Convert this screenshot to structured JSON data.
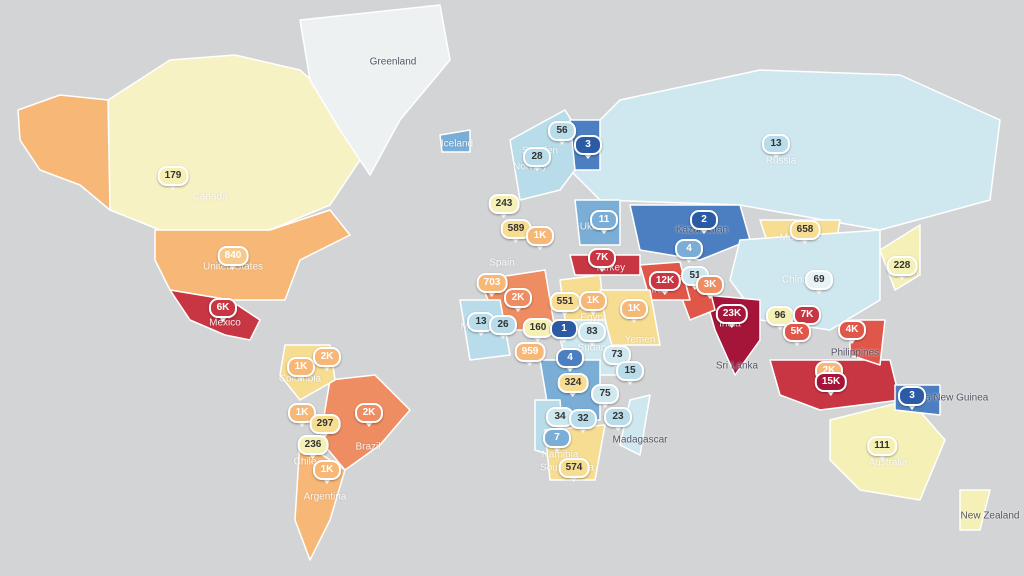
{
  "colors": {
    "ocean": "#d3d4d5",
    "c1": "#2c5ba6",
    "c2": "#4c7fc1",
    "c3": "#7aaed6",
    "c4": "#b8dcea",
    "c5": "#cfe7ef",
    "c6": "#f5f0b6",
    "c7": "#f7dd92",
    "c8": "#f6b777",
    "c9": "#ee8d62",
    "c10": "#e0574a",
    "c11": "#c83543",
    "c12": "#a5153a"
  },
  "countries": [
    {
      "name": "Canada",
      "fill": "#f7f2c4"
    },
    {
      "name": "Alaska",
      "fill": "#f6b777"
    },
    {
      "name": "United States",
      "fill": "#f6b777"
    },
    {
      "name": "Mexico",
      "fill": "#c83543"
    },
    {
      "name": "Greenland",
      "fill": "#eef1f2"
    },
    {
      "name": "Brazil",
      "fill": "#ee8d62"
    },
    {
      "name": "Argentina",
      "fill": "#f6b777"
    },
    {
      "name": "Colombia",
      "fill": "#f7dd92"
    },
    {
      "name": "Russia",
      "fill": "#cfe7ef"
    },
    {
      "name": "Kazakhstan",
      "fill": "#4c7fc1"
    },
    {
      "name": "Mongolia",
      "fill": "#f7dd92"
    },
    {
      "name": "China",
      "fill": "#cfe7ef"
    },
    {
      "name": "India",
      "fill": "#a5153a"
    },
    {
      "name": "Pakistan",
      "fill": "#e0574a"
    },
    {
      "name": "Iran",
      "fill": "#e0574a"
    },
    {
      "name": "Turkey",
      "fill": "#c83543"
    },
    {
      "name": "Algeria",
      "fill": "#ee8d62"
    },
    {
      "name": "Mauritania",
      "fill": "#b8dcea"
    },
    {
      "name": "Egypt",
      "fill": "#f7dd92"
    },
    {
      "name": "Saudi Arabia",
      "fill": "#f7dd92"
    },
    {
      "name": "Sudan",
      "fill": "#cfe7ef"
    },
    {
      "name": "Congo",
      "fill": "#7aaed6"
    },
    {
      "name": "Namibia",
      "fill": "#b8dcea"
    },
    {
      "name": "South Africa",
      "fill": "#f7dd92"
    },
    {
      "name": "Madagascar",
      "fill": "#cfe7ef"
    },
    {
      "name": "Indonesia",
      "fill": "#c83543"
    },
    {
      "name": "Philippines",
      "fill": "#e0574a"
    },
    {
      "name": "Australia",
      "fill": "#f5f0b6"
    },
    {
      "name": "New Zealand",
      "fill": "#f5f0b6"
    },
    {
      "name": "Papua New Guinea",
      "fill": "#4c7fc1"
    },
    {
      "name": "Japan",
      "fill": "#f5f0b6"
    },
    {
      "name": "Scandinavia",
      "fill": "#b8dcea"
    },
    {
      "name": "Finland",
      "fill": "#4c7fc1"
    },
    {
      "name": "Ukraine",
      "fill": "#7aaed6"
    },
    {
      "name": "Iceland",
      "fill": "#7aaed6"
    }
  ],
  "labels": [
    {
      "text": "Greenland",
      "dark": true
    },
    {
      "text": "Canada",
      "dark": false
    },
    {
      "text": "United States",
      "dark": false
    },
    {
      "text": "Mexico",
      "dark": false
    },
    {
      "text": "Colombia",
      "dark": false
    },
    {
      "text": "Brazil",
      "dark": false
    },
    {
      "text": "Argentina",
      "dark": false
    },
    {
      "text": "Chile",
      "dark": false
    },
    {
      "text": "Iceland",
      "dark": false
    },
    {
      "text": "Sweden",
      "dark": false
    },
    {
      "text": "Norway",
      "dark": false
    },
    {
      "text": "Ukraine",
      "dark": false
    },
    {
      "text": "Kazakhstan",
      "dark": true
    },
    {
      "text": "Russia",
      "dark": false
    },
    {
      "text": "Mongolia",
      "dark": false
    },
    {
      "text": "China",
      "dark": false
    },
    {
      "text": "Japan",
      "dark": false
    },
    {
      "text": "Turkey",
      "dark": false
    },
    {
      "text": "Iran",
      "dark": false
    },
    {
      "text": "Pakistan",
      "dark": false
    },
    {
      "text": "India",
      "dark": false
    },
    {
      "text": "Sri Lanka",
      "dark": true
    },
    {
      "text": "Philippines",
      "dark": true
    },
    {
      "text": "Papua New Guinea",
      "dark": true
    },
    {
      "text": "Australia",
      "dark": false
    },
    {
      "text": "New Zealand",
      "dark": true
    },
    {
      "text": "Madagascar",
      "dark": true
    },
    {
      "text": "Namibia",
      "dark": false
    },
    {
      "text": "South Africa",
      "dark": false
    },
    {
      "text": "Sudan",
      "dark": false
    },
    {
      "text": "Mauritania",
      "dark": false
    },
    {
      "text": "Egypt",
      "dark": false
    },
    {
      "text": "Yemen",
      "dark": false
    },
    {
      "text": "Spain",
      "dark": false
    }
  ],
  "markers": [
    {
      "value": "179",
      "color": "#f5f0b6",
      "text": "#333"
    },
    {
      "value": "840",
      "color": "#f6c98c",
      "text": "#fff"
    },
    {
      "value": "6K",
      "color": "#c83543",
      "text": "#fff"
    },
    {
      "value": "1K",
      "color": "#f6b777",
      "text": "#fff"
    },
    {
      "value": "2K",
      "color": "#f6b777",
      "text": "#fff"
    },
    {
      "value": "1K",
      "color": "#f6b777",
      "text": "#fff"
    },
    {
      "value": "297",
      "color": "#f7dd92",
      "text": "#333"
    },
    {
      "value": "2K",
      "color": "#ee8d62",
      "text": "#fff"
    },
    {
      "value": "236",
      "color": "#f5f0b6",
      "text": "#333"
    },
    {
      "value": "1K",
      "color": "#f6b777",
      "text": "#fff"
    },
    {
      "value": "56",
      "color": "#b8dcea",
      "text": "#333"
    },
    {
      "value": "3",
      "color": "#2c5ba6",
      "text": "#fff"
    },
    {
      "value": "28",
      "color": "#b8dcea",
      "text": "#333"
    },
    {
      "value": "243",
      "color": "#f5f0b6",
      "text": "#333"
    },
    {
      "value": "589",
      "color": "#f7dd92",
      "text": "#333"
    },
    {
      "value": "1K",
      "color": "#f6b777",
      "text": "#fff"
    },
    {
      "value": "11",
      "color": "#7aaed6",
      "text": "#fff"
    },
    {
      "value": "7K",
      "color": "#c83543",
      "text": "#fff"
    },
    {
      "value": "2",
      "color": "#2c5ba6",
      "text": "#fff"
    },
    {
      "value": "4",
      "color": "#7aaed6",
      "text": "#fff"
    },
    {
      "value": "51",
      "color": "#cfe7ef",
      "text": "#333"
    },
    {
      "value": "13",
      "color": "#b8dcea",
      "text": "#333"
    },
    {
      "value": "658",
      "color": "#f7dd92",
      "text": "#333"
    },
    {
      "value": "69",
      "color": "#e8f3f7",
      "text": "#333"
    },
    {
      "value": "228",
      "color": "#f5f0b6",
      "text": "#333"
    },
    {
      "value": "703",
      "color": "#f6b777",
      "text": "#fff"
    },
    {
      "value": "2K",
      "color": "#ee8d62",
      "text": "#fff"
    },
    {
      "value": "551",
      "color": "#f7dd92",
      "text": "#333"
    },
    {
      "value": "1K",
      "color": "#f6b777",
      "text": "#fff"
    },
    {
      "value": "12K",
      "color": "#c83543",
      "text": "#fff"
    },
    {
      "value": "3K",
      "color": "#ee8d62",
      "text": "#fff"
    },
    {
      "value": "1K",
      "color": "#f6b777",
      "text": "#fff"
    },
    {
      "value": "23K",
      "color": "#a5153a",
      "text": "#fff"
    },
    {
      "value": "96",
      "color": "#f5f0b6",
      "text": "#333"
    },
    {
      "value": "7K",
      "color": "#c83543",
      "text": "#fff"
    },
    {
      "value": "5K",
      "color": "#e0574a",
      "text": "#fff"
    },
    {
      "value": "4K",
      "color": "#e0574a",
      "text": "#fff"
    },
    {
      "value": "13",
      "color": "#b8dcea",
      "text": "#333"
    },
    {
      "value": "26",
      "color": "#b8dcea",
      "text": "#333"
    },
    {
      "value": "160",
      "color": "#f5f0b6",
      "text": "#333"
    },
    {
      "value": "1",
      "color": "#2c5ba6",
      "text": "#fff"
    },
    {
      "value": "83",
      "color": "#cfe7ef",
      "text": "#333"
    },
    {
      "value": "959",
      "color": "#f6b777",
      "text": "#fff"
    },
    {
      "value": "4",
      "color": "#4c7fc1",
      "text": "#fff"
    },
    {
      "value": "73",
      "color": "#cfe7ef",
      "text": "#333"
    },
    {
      "value": "15",
      "color": "#b8dcea",
      "text": "#333"
    },
    {
      "value": "324",
      "color": "#f7dd92",
      "text": "#333"
    },
    {
      "value": "75",
      "color": "#cfe7ef",
      "text": "#333"
    },
    {
      "value": "34",
      "color": "#cfe7ef",
      "text": "#333"
    },
    {
      "value": "32",
      "color": "#b8dcea",
      "text": "#333"
    },
    {
      "value": "23",
      "color": "#b8dcea",
      "text": "#333"
    },
    {
      "value": "7",
      "color": "#7aaed6",
      "text": "#fff"
    },
    {
      "value": "574",
      "color": "#f7dd92",
      "text": "#333"
    },
    {
      "value": "2K",
      "color": "#f6b777",
      "text": "#fff"
    },
    {
      "value": "15K",
      "color": "#a5153a",
      "text": "#fff"
    },
    {
      "value": "3",
      "color": "#2c5ba6",
      "text": "#fff"
    },
    {
      "value": "111",
      "color": "#f5f0b6",
      "text": "#333"
    }
  ]
}
